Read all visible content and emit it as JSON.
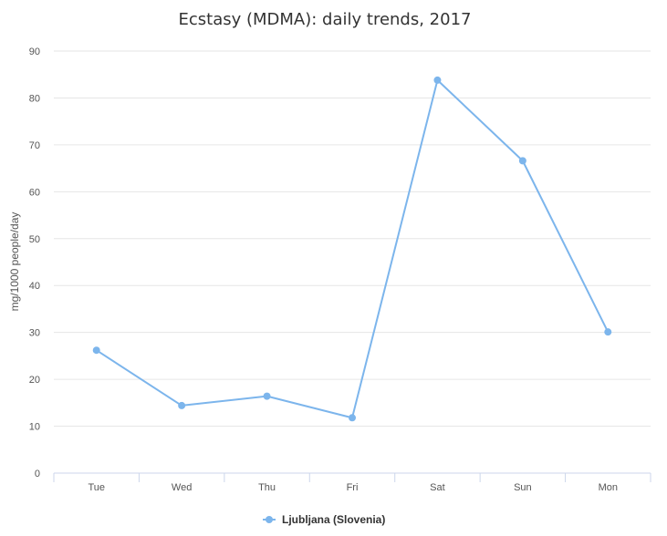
{
  "chart_data": {
    "type": "line",
    "title": "Ecstasy (MDMA): daily trends, 2017",
    "xlabel": "",
    "ylabel": "mg/1000 people/day",
    "categories": [
      "Tue",
      "Wed",
      "Thu",
      "Fri",
      "Sat",
      "Sun",
      "Mon"
    ],
    "series": [
      {
        "name": "Ljubljana (Slovenia)",
        "values": [
          26.2,
          14.4,
          16.4,
          11.8,
          83.8,
          66.6,
          30.1
        ],
        "color": "#7cb5ec"
      }
    ],
    "ylim": [
      0,
      90
    ],
    "yticks": [
      0,
      10,
      20,
      30,
      40,
      50,
      60,
      70,
      80,
      90
    ],
    "grid": true,
    "legend_position": "bottom-center"
  }
}
